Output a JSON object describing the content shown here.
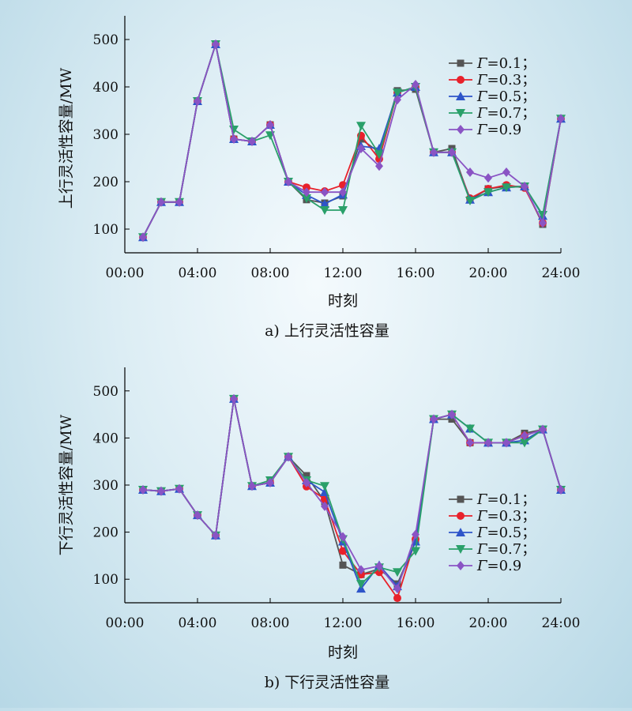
{
  "chart_data": [
    {
      "type": "line",
      "ylabel": "上行灵活性容量/MW",
      "xlabel": "时刻",
      "caption": "a) 上行灵活性容量",
      "xticks": [
        "00:00",
        "04:00",
        "08:00",
        "12:00",
        "16:00",
        "20:00",
        "24:00"
      ],
      "yticks": [
        "100",
        "200",
        "300",
        "400",
        "500"
      ],
      "xlim": [
        0,
        24
      ],
      "ylim": [
        50,
        550
      ],
      "x": [
        1,
        2,
        3,
        4,
        5,
        6,
        7,
        8,
        9,
        10,
        11,
        12,
        13,
        14,
        15,
        16,
        17,
        18,
        19,
        20,
        21,
        22,
        23,
        24
      ],
      "legend_position": "right",
      "series": [
        {
          "name": "Γ=0.1；",
          "marker": "square",
          "color": "#555555",
          "values": [
            83,
            157,
            157,
            370,
            490,
            290,
            285,
            320,
            200,
            162,
            155,
            170,
            290,
            262,
            392,
            395,
            262,
            270,
            162,
            185,
            190,
            190,
            110,
            333
          ]
        },
        {
          "name": "Γ=0.3；",
          "marker": "circle",
          "color": "#e8212b",
          "values": [
            83,
            157,
            157,
            370,
            490,
            290,
            285,
            320,
            200,
            188,
            180,
            193,
            297,
            248,
            388,
            400,
            262,
            262,
            165,
            185,
            193,
            187,
            113,
            333
          ]
        },
        {
          "name": "Γ=0.5；",
          "marker": "triangle-up",
          "color": "#2e55c9",
          "values": [
            83,
            157,
            157,
            370,
            490,
            290,
            285,
            320,
            200,
            172,
            153,
            173,
            275,
            270,
            388,
            400,
            262,
            262,
            162,
            178,
            188,
            190,
            128,
            333
          ]
        },
        {
          "name": "Γ=0.7；",
          "marker": "triangle-down",
          "color": "#2aa06a",
          "values": [
            83,
            157,
            157,
            370,
            490,
            310,
            285,
            298,
            200,
            165,
            140,
            140,
            318,
            258,
            388,
            400,
            262,
            262,
            160,
            178,
            188,
            190,
            130,
            333
          ]
        },
        {
          "name": "Γ=0.9",
          "marker": "diamond",
          "color": "#8a54c4",
          "values": [
            83,
            157,
            157,
            370,
            490,
            290,
            285,
            320,
            200,
            178,
            178,
            178,
            270,
            233,
            373,
            405,
            262,
            262,
            220,
            208,
            220,
            190,
            113,
            333
          ]
        }
      ]
    },
    {
      "type": "line",
      "ylabel": "下行灵活性容量/MW",
      "xlabel": "时刻",
      "caption": "b) 下行灵活性容量",
      "xticks": [
        "00:00",
        "04:00",
        "08:00",
        "12:00",
        "16:00",
        "20:00",
        "24:00"
      ],
      "yticks": [
        "100",
        "200",
        "300",
        "400",
        "500"
      ],
      "xlim": [
        0,
        24
      ],
      "ylim": [
        50,
        550
      ],
      "x": [
        1,
        2,
        3,
        4,
        5,
        6,
        7,
        8,
        9,
        10,
        11,
        12,
        13,
        14,
        15,
        16,
        17,
        18,
        19,
        20,
        21,
        22,
        23,
        24
      ],
      "legend_position": "lower-right",
      "series": [
        {
          "name": "Γ=0.1；",
          "marker": "square",
          "color": "#555555",
          "values": [
            290,
            287,
            292,
            236,
            193,
            483,
            298,
            305,
            360,
            320,
            265,
            130,
            110,
            122,
            90,
            180,
            440,
            440,
            390,
            390,
            390,
            410,
            418,
            290
          ]
        },
        {
          "name": "Γ=0.3；",
          "marker": "circle",
          "color": "#e8212b",
          "values": [
            290,
            287,
            292,
            236,
            193,
            483,
            298,
            305,
            360,
            297,
            270,
            160,
            110,
            115,
            60,
            185,
            440,
            450,
            390,
            390,
            390,
            405,
            418,
            290
          ]
        },
        {
          "name": "Γ=0.5；",
          "marker": "triangle-up",
          "color": "#2e55c9",
          "values": [
            290,
            287,
            292,
            236,
            193,
            483,
            298,
            305,
            360,
            310,
            285,
            180,
            80,
            130,
            85,
            180,
            440,
            450,
            420,
            390,
            390,
            395,
            418,
            290
          ]
        },
        {
          "name": "Γ=0.7；",
          "marker": "triangle-down",
          "color": "#2aa06a",
          "values": [
            290,
            287,
            292,
            236,
            193,
            483,
            298,
            310,
            360,
            310,
            298,
            185,
            90,
            125,
            115,
            160,
            440,
            450,
            420,
            390,
            390,
            390,
            418,
            290
          ]
        },
        {
          "name": "Γ=0.9",
          "marker": "diamond",
          "color": "#8a54c4",
          "values": [
            290,
            287,
            292,
            236,
            193,
            483,
            298,
            305,
            360,
            305,
            255,
            190,
            120,
            128,
            80,
            195,
            440,
            450,
            390,
            390,
            390,
            405,
            418,
            290
          ]
        }
      ]
    }
  ]
}
